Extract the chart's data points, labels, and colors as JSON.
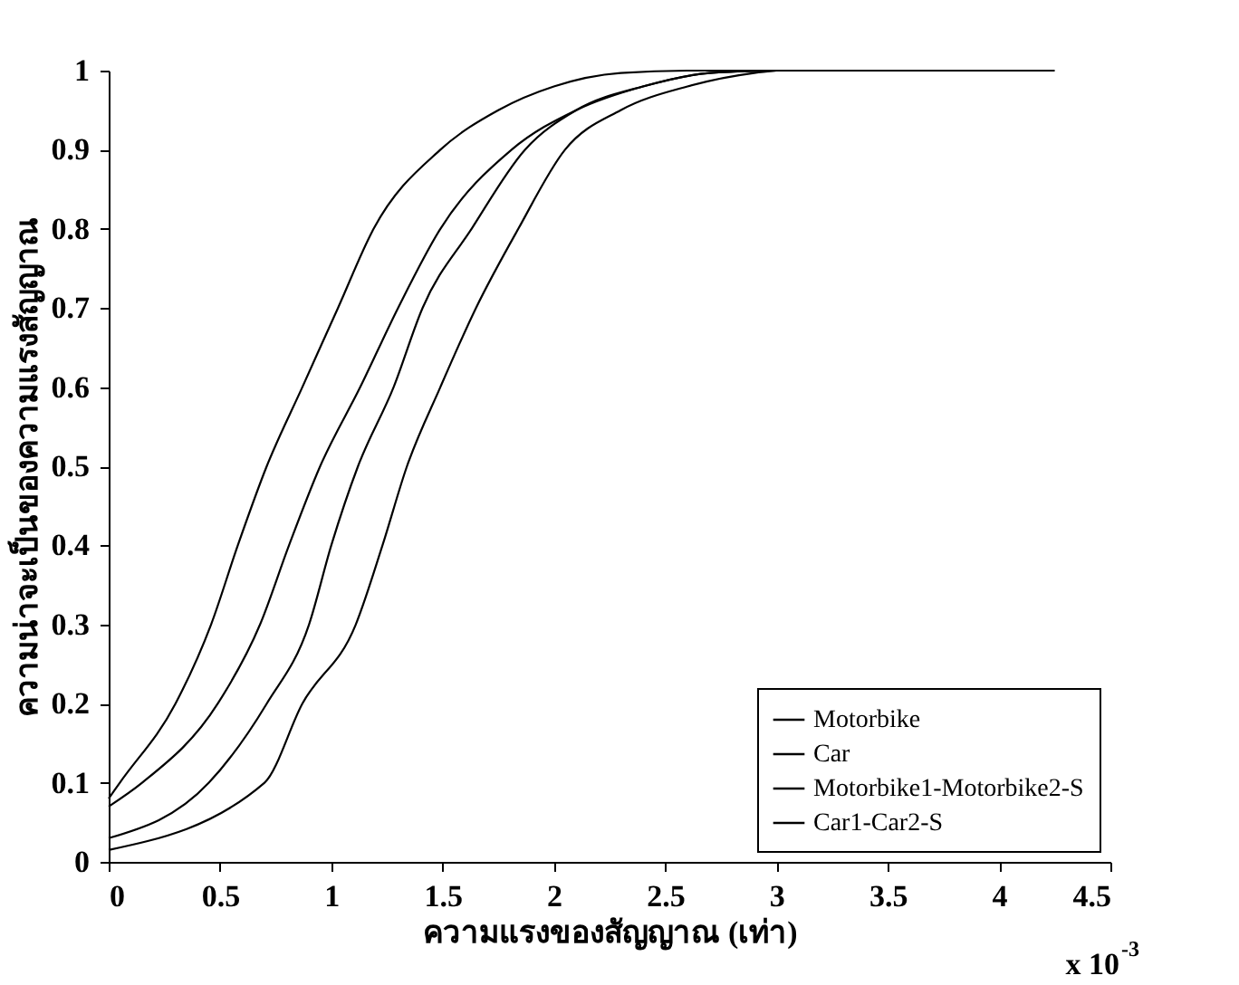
{
  "chart_data": {
    "type": "line",
    "xlabel": "ความแรงของสัญญาณ (เท่า)",
    "ylabel": "ความน่าจะเป็นของความแรงสัญญาณ",
    "annotations": [
      "x 10$^{-3}$"
    ],
    "xlim": [
      0,
      4.5
    ],
    "ylim": [
      0,
      1
    ],
    "xticks": [
      0,
      0.5,
      1,
      1.5,
      2,
      2.5,
      3,
      3.5,
      4,
      4.5
    ],
    "yticks": [
      0,
      0.1,
      0.2,
      0.3,
      0.4,
      0.5,
      0.6,
      0.7,
      0.8,
      0.9,
      1
    ],
    "grid": false,
    "legend": "bottom right",
    "marker": "none",
    "line_style": "solid",
    "series": [
      {
        "name": "Motorbike",
        "color": "#000000",
        "x": [
          0,
          0.05,
          0.3,
          0.46,
          0.58,
          0.71,
          0.87,
          1.03,
          1.19,
          1.49,
          1.75,
          2.0,
          2.3,
          2.6,
          3.0,
          3.5,
          4.0,
          4.25
        ],
        "values": [
          0.08,
          0.1,
          0.2,
          0.3,
          0.4,
          0.5,
          0.6,
          0.7,
          0.8,
          0.9,
          0.95,
          0.98,
          0.997,
          1,
          1,
          1,
          1,
          1
        ]
      },
      {
        "name": "Car",
        "color": "#000000",
        "x": [
          0,
          0.15,
          0.49,
          0.68,
          0.81,
          0.95,
          1.13,
          1.3,
          1.49,
          1.81,
          2.1,
          2.4,
          2.7,
          3.0
        ],
        "values": [
          0.07,
          0.1,
          0.2,
          0.3,
          0.4,
          0.5,
          0.6,
          0.7,
          0.8,
          0.9,
          0.95,
          0.98,
          0.997,
          1
        ]
      },
      {
        "name": "Motorbike1-Motorbike2-S",
        "color": "#000000",
        "x": [
          0,
          0.45,
          0.71,
          0.9,
          1.0,
          1.12,
          1.28,
          1.41,
          1.63,
          1.87,
          2.1,
          2.4,
          2.7,
          3.0
        ],
        "values": [
          0.03,
          0.1,
          0.2,
          0.3,
          0.4,
          0.5,
          0.6,
          0.7,
          0.8,
          0.9,
          0.95,
          0.98,
          0.997,
          1
        ]
      },
      {
        "name": "Car1-Car2-S",
        "color": "#000000",
        "x": [
          0,
          0.7,
          0.87,
          1.11,
          1.23,
          1.34,
          1.49,
          1.65,
          1.84,
          2.05,
          2.3,
          2.6,
          2.9,
          3.0
        ],
        "values": [
          0.015,
          0.1,
          0.2,
          0.3,
          0.4,
          0.5,
          0.6,
          0.7,
          0.8,
          0.9,
          0.95,
          0.98,
          0.997,
          1
        ]
      }
    ]
  }
}
